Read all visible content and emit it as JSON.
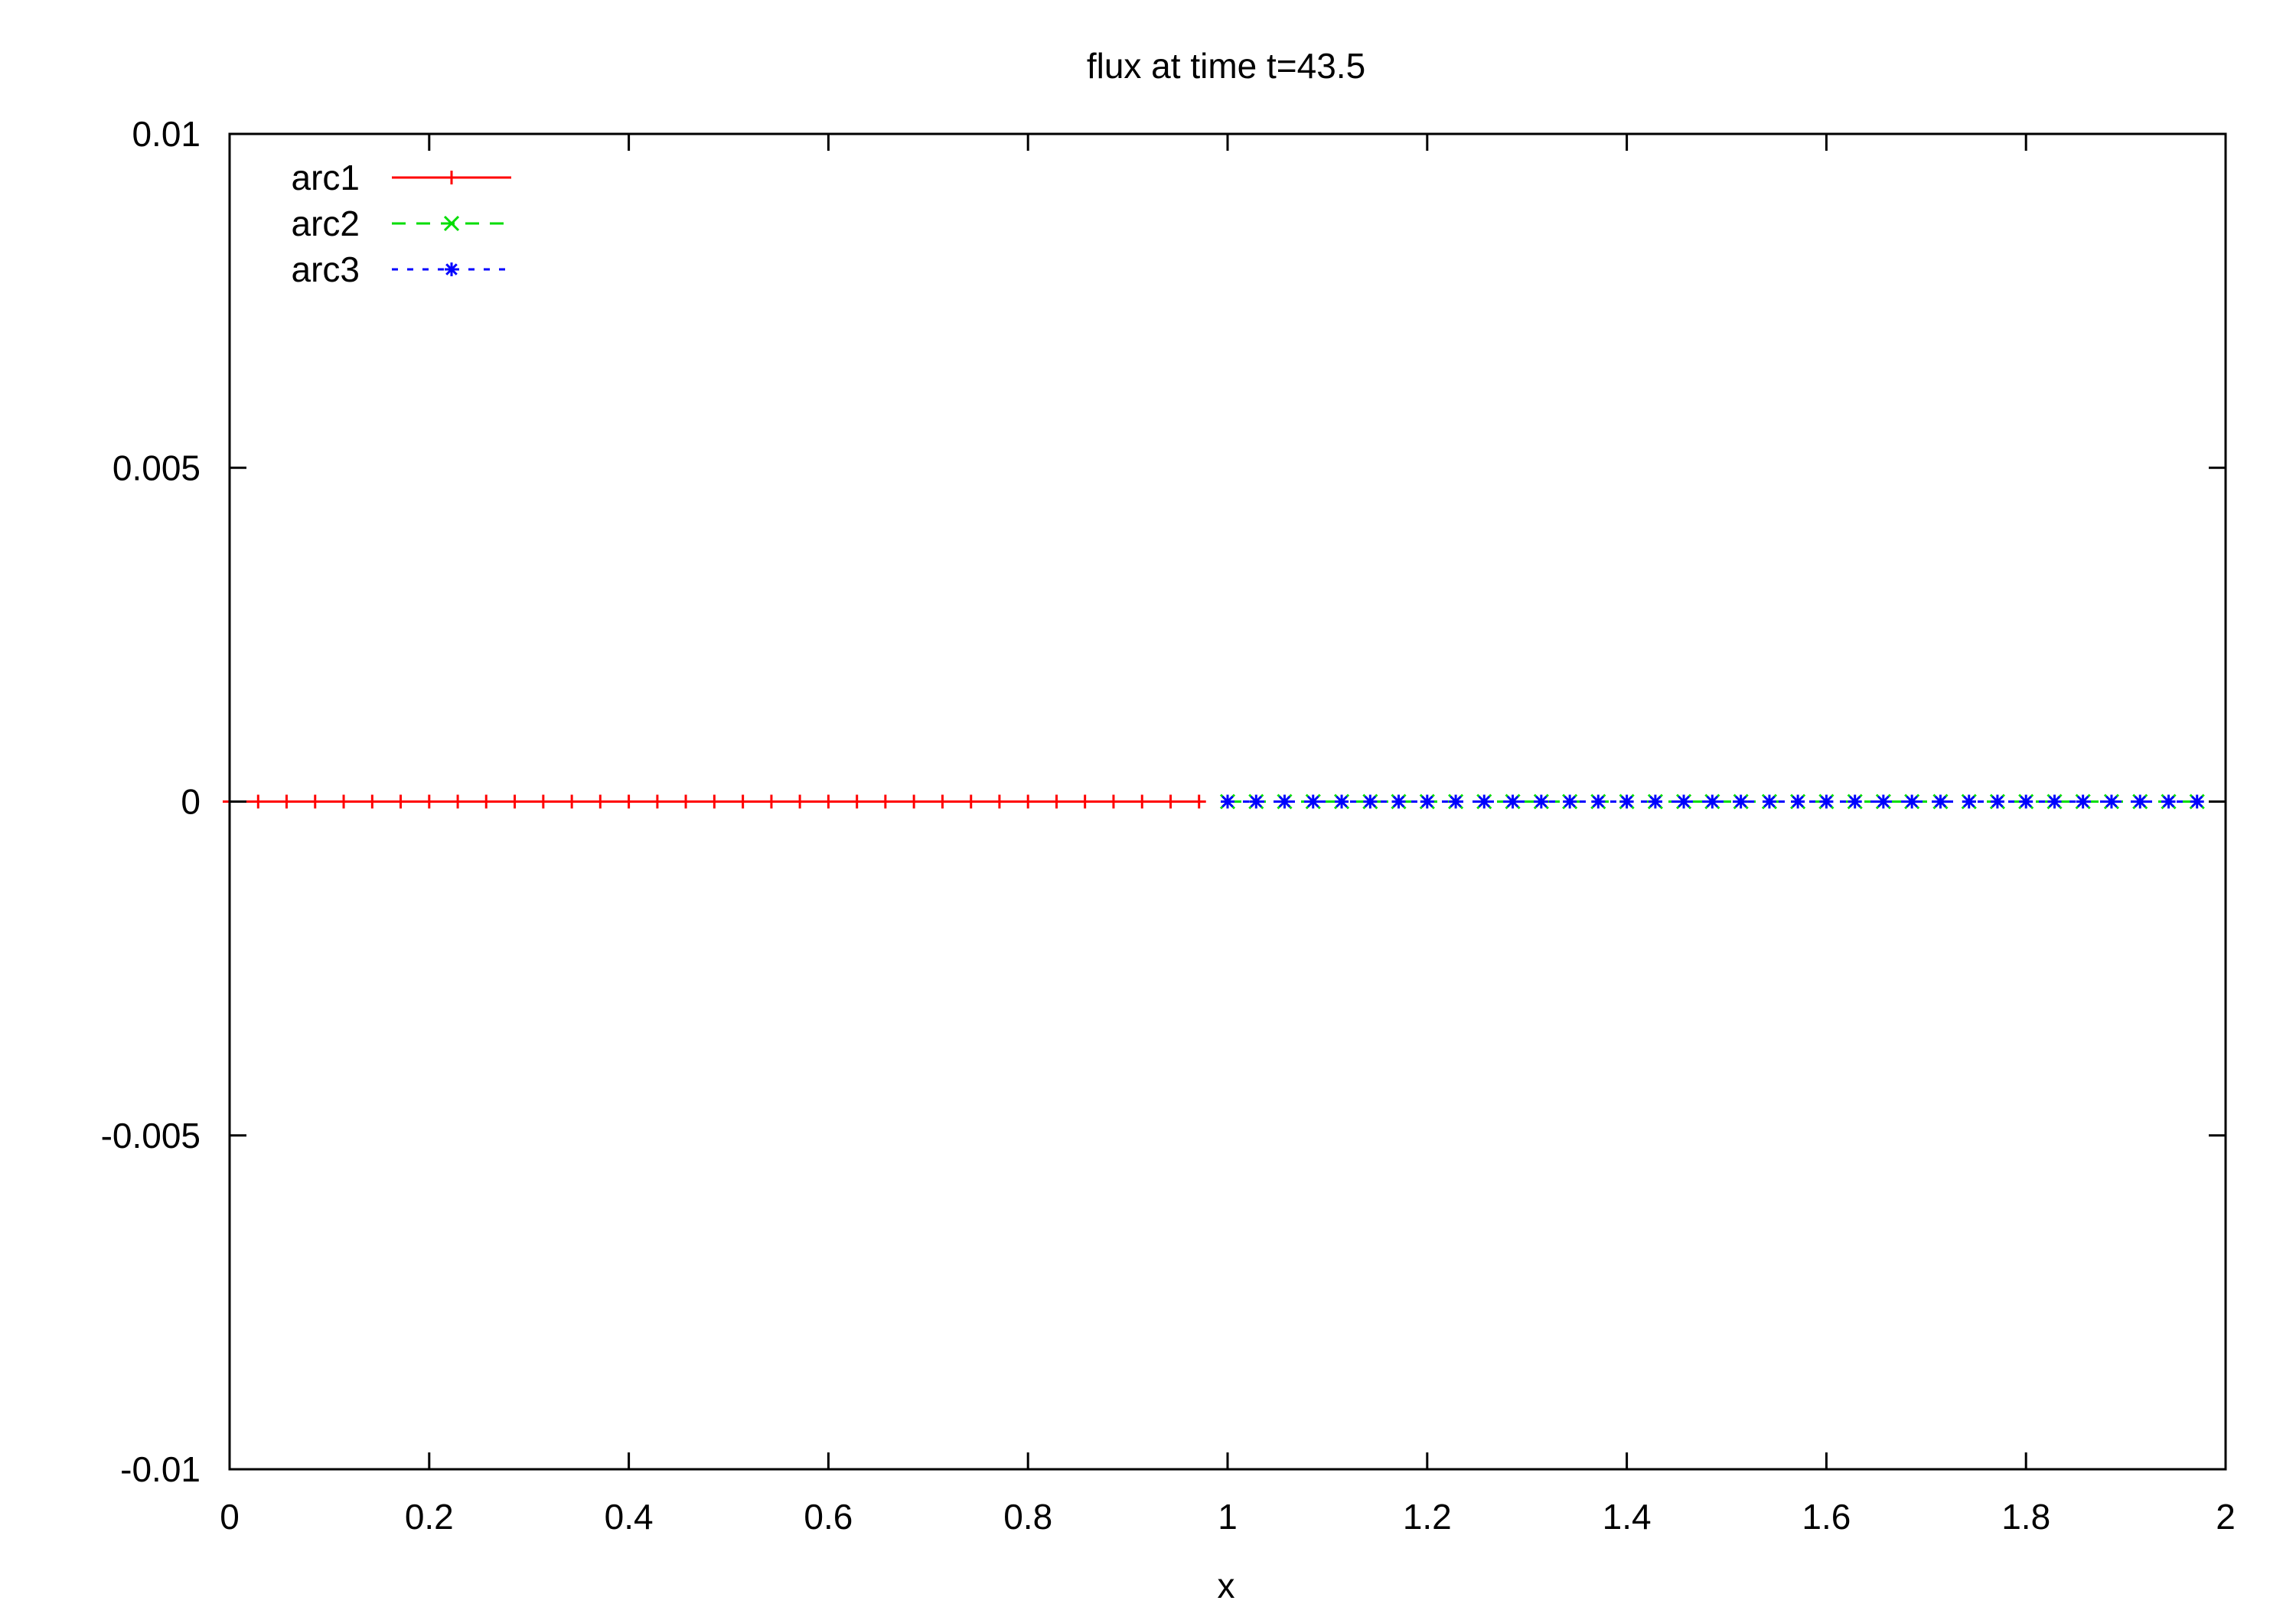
{
  "chart_data": {
    "type": "line",
    "title": "flux at time t=43.5",
    "xlabel": "x",
    "ylabel": "",
    "xlim": [
      0,
      2
    ],
    "ylim": [
      -0.01,
      0.01
    ],
    "x_ticks": [
      {
        "value": 0,
        "label": "0"
      },
      {
        "value": 0.2,
        "label": "0.2"
      },
      {
        "value": 0.4,
        "label": "0.4"
      },
      {
        "value": 0.6,
        "label": "0.6"
      },
      {
        "value": 0.8,
        "label": "0.8"
      },
      {
        "value": 1,
        "label": "1"
      },
      {
        "value": 1.2,
        "label": "1.2"
      },
      {
        "value": 1.4,
        "label": "1.4"
      },
      {
        "value": 1.6,
        "label": "1.6"
      },
      {
        "value": 1.8,
        "label": "1.8"
      },
      {
        "value": 2,
        "label": "2"
      }
    ],
    "y_ticks": [
      {
        "value": 0.01,
        "label": "0.01"
      },
      {
        "value": 0.005,
        "label": "0.005"
      },
      {
        "value": 0,
        "label": "0"
      },
      {
        "value": -0.005,
        "label": "-0.005"
      },
      {
        "value": -0.01,
        "label": "-0.01"
      }
    ],
    "grid": false,
    "legend_position": "top-left",
    "series": [
      {
        "name": "arc1",
        "color": "#ff0000",
        "marker": "plus",
        "line_style": "solid",
        "x": [
          0,
          0.0286,
          0.0571,
          0.0857,
          0.1143,
          0.1429,
          0.1714,
          0.2,
          0.2286,
          0.2571,
          0.2857,
          0.3143,
          0.3429,
          0.3714,
          0.4,
          0.4286,
          0.4571,
          0.4857,
          0.5143,
          0.5429,
          0.5714,
          0.6,
          0.6286,
          0.6571,
          0.6857,
          0.7143,
          0.7429,
          0.7714,
          0.8,
          0.8286,
          0.8571,
          0.8857,
          0.9143,
          0.9429,
          0.9714
        ],
        "y": [
          0,
          0,
          0,
          0,
          0,
          0,
          0,
          0,
          0,
          0,
          0,
          0,
          0,
          0,
          0,
          0,
          0,
          0,
          0,
          0,
          0,
          0,
          0,
          0,
          0,
          0,
          0,
          0,
          0,
          0,
          0,
          0,
          0,
          0,
          0
        ]
      },
      {
        "name": "arc2",
        "color": "#00dd00",
        "marker": "cross",
        "line_style": "dashed",
        "x": [
          1,
          1.0286,
          1.0571,
          1.0857,
          1.1143,
          1.1429,
          1.1714,
          1.2,
          1.2286,
          1.2571,
          1.2857,
          1.3143,
          1.3429,
          1.3714,
          1.4,
          1.4286,
          1.4571,
          1.4857,
          1.5143,
          1.5429,
          1.5714,
          1.6,
          1.6286,
          1.6571,
          1.6857,
          1.7143,
          1.7429,
          1.7714,
          1.8,
          1.8286,
          1.8571,
          1.8857,
          1.9143,
          1.9429,
          1.9714
        ],
        "y": [
          0,
          0,
          0,
          0,
          0,
          0,
          0,
          0,
          0,
          0,
          0,
          0,
          0,
          0,
          0,
          0,
          0,
          0,
          0,
          0,
          0,
          0,
          0,
          0,
          0,
          0,
          0,
          0,
          0,
          0,
          0,
          0,
          0,
          0,
          0
        ]
      },
      {
        "name": "arc3",
        "color": "#0000ff",
        "marker": "star",
        "line_style": "dotted",
        "x": [
          1,
          1.0286,
          1.0571,
          1.0857,
          1.1143,
          1.1429,
          1.1714,
          1.2,
          1.2286,
          1.2571,
          1.2857,
          1.3143,
          1.3429,
          1.3714,
          1.4,
          1.4286,
          1.4571,
          1.4857,
          1.5143,
          1.5429,
          1.5714,
          1.6,
          1.6286,
          1.6571,
          1.6857,
          1.7143,
          1.7429,
          1.7714,
          1.8,
          1.8286,
          1.8571,
          1.8857,
          1.9143,
          1.9429,
          1.9714
        ],
        "y": [
          0,
          0,
          0,
          0,
          0,
          0,
          0,
          0,
          0,
          0,
          0,
          0,
          0,
          0,
          0,
          0,
          0,
          0,
          0,
          0,
          0,
          0,
          0,
          0,
          0,
          0,
          0,
          0,
          0,
          0,
          0,
          0,
          0,
          0,
          0
        ]
      }
    ]
  }
}
